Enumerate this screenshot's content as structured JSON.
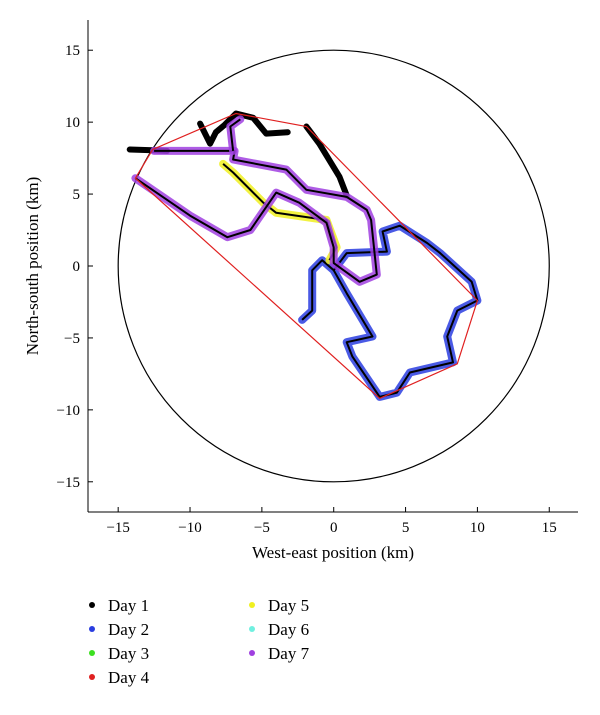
{
  "chart_data": {
    "type": "line",
    "title": "",
    "xlabel": "West-east position (km)",
    "ylabel": "North-south position (km)",
    "xlim": [
      -17.1,
      17
    ],
    "ylim": [
      -17.1,
      17.1
    ],
    "xticks": [
      -15,
      -10,
      -5,
      0,
      5,
      10,
      15
    ],
    "yticks": [
      15,
      10,
      5,
      0,
      -5,
      -10,
      -15
    ],
    "grid": false,
    "legend_placement": "bottom",
    "circle": {
      "center": [
        0,
        0
      ],
      "radius": 15,
      "color": "#000000"
    },
    "hull": {
      "color": "#e02020",
      "points": [
        [
          -13.8,
          6.1
        ],
        [
          -12.6,
          8.1
        ],
        [
          -6.8,
          10.6
        ],
        [
          -1.9,
          9.7
        ],
        [
          10,
          -2.4
        ],
        [
          8.6,
          -6.8
        ],
        [
          3.2,
          -9.2
        ]
      ]
    },
    "series": [
      {
        "name": "Day 1",
        "color": "#000000",
        "segments": [
          [
            [
              -14.2,
              8.1
            ],
            [
              -12.6,
              8.05
            ],
            [
              -11.6,
              8.0
            ]
          ],
          [
            [
              -9.3,
              9.9
            ],
            [
              -8.6,
              8.5
            ],
            [
              -8.2,
              9.3
            ],
            [
              -7.6,
              9.8
            ],
            [
              -6.8,
              10.6
            ],
            [
              -5.6,
              10.3
            ],
            [
              -4.7,
              9.2
            ],
            [
              -3.2,
              9.3
            ]
          ],
          [
            [
              -1.9,
              9.7
            ],
            [
              -1.0,
              8.5
            ],
            [
              0.4,
              6.2
            ],
            [
              0.9,
              4.9
            ]
          ]
        ]
      },
      {
        "name": "Day 2",
        "color": "#2a3de0",
        "segments": [
          [
            [
              -2.2,
              -3.75
            ],
            [
              -1.5,
              -3.1
            ],
            [
              -1.5,
              -0.3
            ],
            [
              -0.8,
              0.4
            ],
            [
              0,
              -0.3
            ],
            [
              0.9,
              -1.9
            ],
            [
              2.7,
              -4.9
            ],
            [
              0.9,
              -5.3
            ],
            [
              1.3,
              -6.3
            ],
            [
              3.2,
              -9.1
            ],
            [
              4.4,
              -8.8
            ],
            [
              5.3,
              -7.4
            ],
            [
              8.3,
              -6.7
            ],
            [
              7.9,
              -4.9
            ],
            [
              8.6,
              -3.1
            ],
            [
              10,
              -2.4
            ],
            [
              9.6,
              -1.1
            ],
            [
              7.4,
              0.9
            ],
            [
              6.5,
              1.6
            ],
            [
              4.6,
              2.8
            ],
            [
              3.4,
              2.4
            ],
            [
              3.7,
              1.0
            ],
            [
              0.9,
              0.9
            ],
            [
              0,
              -0.3
            ]
          ]
        ]
      },
      {
        "name": "Day 3",
        "color": "#3ce020",
        "segments": []
      },
      {
        "name": "Day 4",
        "color": "#e02020",
        "segments": []
      },
      {
        "name": "Day 5",
        "color": "#f0f020",
        "segments": [
          [
            [
              -7.7,
              7.1
            ],
            [
              -7,
              6.5
            ],
            [
              -4.9,
              4.4
            ],
            [
              -4,
              3.7
            ],
            [
              -0.5,
              3.2
            ],
            [
              0.2,
              1.3
            ],
            [
              -0.3,
              0.4
            ]
          ]
        ]
      },
      {
        "name": "Day 6",
        "color": "#70f0e0",
        "segments": []
      },
      {
        "name": "Day 7",
        "color": "#a040e0",
        "segments": [
          [
            [
              -13.8,
              6.1
            ],
            [
              -10,
              3.5
            ],
            [
              -7.4,
              2.0
            ],
            [
              -5.8,
              2.5
            ],
            [
              -4.0,
              5.1
            ],
            [
              -2.4,
              4.4
            ],
            [
              -0.5,
              3.0
            ],
            [
              0,
              1.3
            ],
            [
              0,
              0.2
            ],
            [
              1.8,
              -1.1
            ],
            [
              3,
              -0.6
            ],
            [
              2.6,
              3.2
            ],
            [
              2.3,
              3.9
            ],
            [
              0.9,
              4.8
            ],
            [
              -1.9,
              5.3
            ],
            [
              -3.3,
              6.7
            ],
            [
              -7,
              7.4
            ],
            [
              -6.9,
              8.0
            ],
            [
              -12.5,
              8.0
            ]
          ],
          [
            [
              -7,
              8.0
            ],
            [
              -7.2,
              9.7
            ],
            [
              -6.5,
              10.2
            ]
          ]
        ]
      }
    ]
  }
}
